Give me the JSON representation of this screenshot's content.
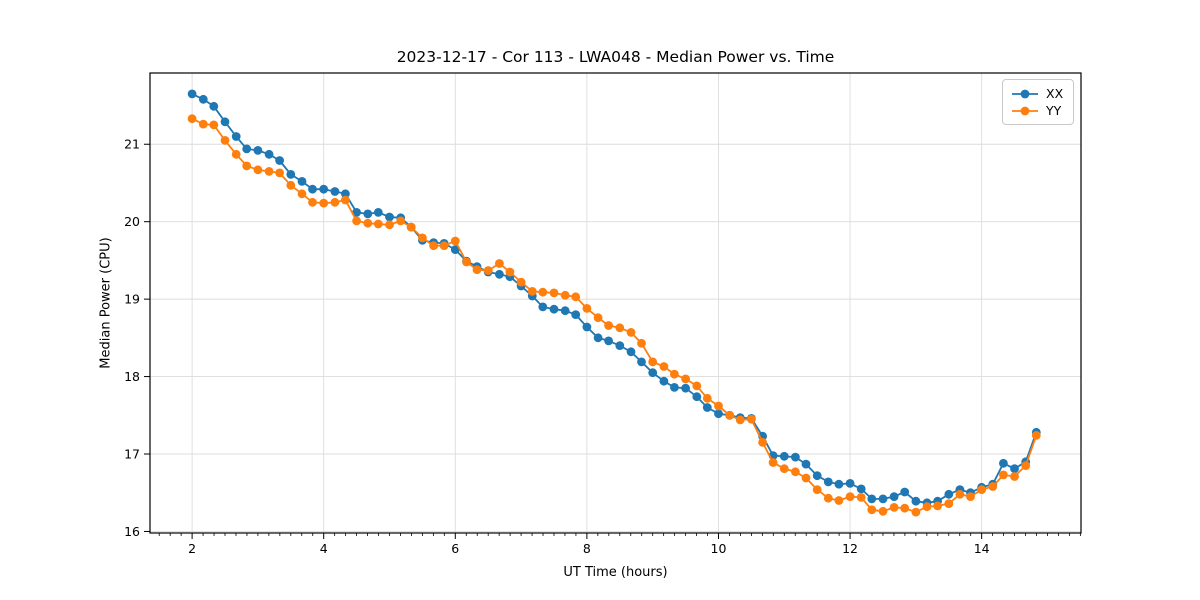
{
  "chart_data": {
    "type": "line",
    "title": "2023-12-17 - Cor 113 - LWA048 - Median Power vs. Time",
    "xlabel": "UT Time (hours)",
    "ylabel": "Median Power (CPU)",
    "xlim": [
      1.36,
      15.51
    ],
    "ylim": [
      15.98,
      21.92
    ],
    "xticks": [
      2,
      4,
      6,
      8,
      10,
      12,
      14
    ],
    "yticks": [
      16,
      17,
      18,
      19,
      20,
      21
    ],
    "xtick_minor_step": 0.16667,
    "grid": "major",
    "grid_color": "#dcdcdc",
    "spine_color": "#000000",
    "legend_position": "upper right",
    "x": [
      2.0,
      2.17,
      2.33,
      2.5,
      2.67,
      2.83,
      3.0,
      3.17,
      3.33,
      3.5,
      3.67,
      3.83,
      4.0,
      4.17,
      4.33,
      4.5,
      4.67,
      4.83,
      5.0,
      5.17,
      5.33,
      5.5,
      5.67,
      5.83,
      6.0,
      6.17,
      6.33,
      6.5,
      6.67,
      6.83,
      7.0,
      7.17,
      7.33,
      7.5,
      7.67,
      7.83,
      8.0,
      8.17,
      8.33,
      8.5,
      8.67,
      8.83,
      9.0,
      9.17,
      9.33,
      9.5,
      9.67,
      9.83,
      10.0,
      10.17,
      10.33,
      10.5,
      10.67,
      10.83,
      11.0,
      11.17,
      11.33,
      11.5,
      11.67,
      11.83,
      12.0,
      12.17,
      12.33,
      12.5,
      12.67,
      12.83,
      13.0,
      13.17,
      13.33,
      13.5,
      13.67,
      13.83,
      14.0,
      14.17,
      14.33,
      14.5,
      14.67,
      14.83
    ],
    "series": [
      {
        "name": "XX",
        "color": "#1f77b4",
        "values": [
          21.65,
          21.58,
          21.49,
          21.29,
          21.1,
          20.94,
          20.92,
          20.87,
          20.79,
          20.61,
          20.52,
          20.42,
          20.42,
          20.39,
          20.36,
          20.12,
          20.1,
          20.12,
          20.06,
          20.05,
          19.93,
          19.76,
          19.73,
          19.72,
          19.64,
          19.49,
          19.42,
          19.35,
          19.32,
          19.29,
          19.17,
          19.04,
          18.9,
          18.87,
          18.85,
          18.8,
          18.64,
          18.5,
          18.46,
          18.4,
          18.32,
          18.19,
          18.05,
          17.94,
          17.86,
          17.85,
          17.74,
          17.6,
          17.52,
          17.5,
          17.47,
          17.46,
          17.23,
          16.98,
          16.97,
          16.96,
          16.87,
          16.72,
          16.64,
          16.61,
          16.62,
          16.55,
          16.42,
          16.42,
          16.45,
          16.51,
          16.39,
          16.37,
          16.39,
          16.48,
          16.54,
          16.5,
          16.57,
          16.61,
          16.88,
          16.81,
          16.9,
          17.28
        ]
      },
      {
        "name": "YY",
        "color": "#ff7f0e",
        "values": [
          21.33,
          21.26,
          21.25,
          21.05,
          20.87,
          20.72,
          20.67,
          20.65,
          20.63,
          20.47,
          20.36,
          20.25,
          20.24,
          20.25,
          20.28,
          20.01,
          19.98,
          19.97,
          19.96,
          20.01,
          19.93,
          19.79,
          19.69,
          19.69,
          19.75,
          19.48,
          19.38,
          19.37,
          19.46,
          19.35,
          19.22,
          19.1,
          19.09,
          19.08,
          19.05,
          19.03,
          18.88,
          18.76,
          18.66,
          18.63,
          18.57,
          18.43,
          18.19,
          18.13,
          18.03,
          17.97,
          17.88,
          17.72,
          17.62,
          17.5,
          17.44,
          17.45,
          17.15,
          16.89,
          16.81,
          16.77,
          16.69,
          16.54,
          16.43,
          16.4,
          16.45,
          16.44,
          16.28,
          16.26,
          16.31,
          16.3,
          16.25,
          16.32,
          16.33,
          16.36,
          16.48,
          16.45,
          16.54,
          16.58,
          16.73,
          16.71,
          16.85,
          17.24
        ]
      }
    ]
  }
}
